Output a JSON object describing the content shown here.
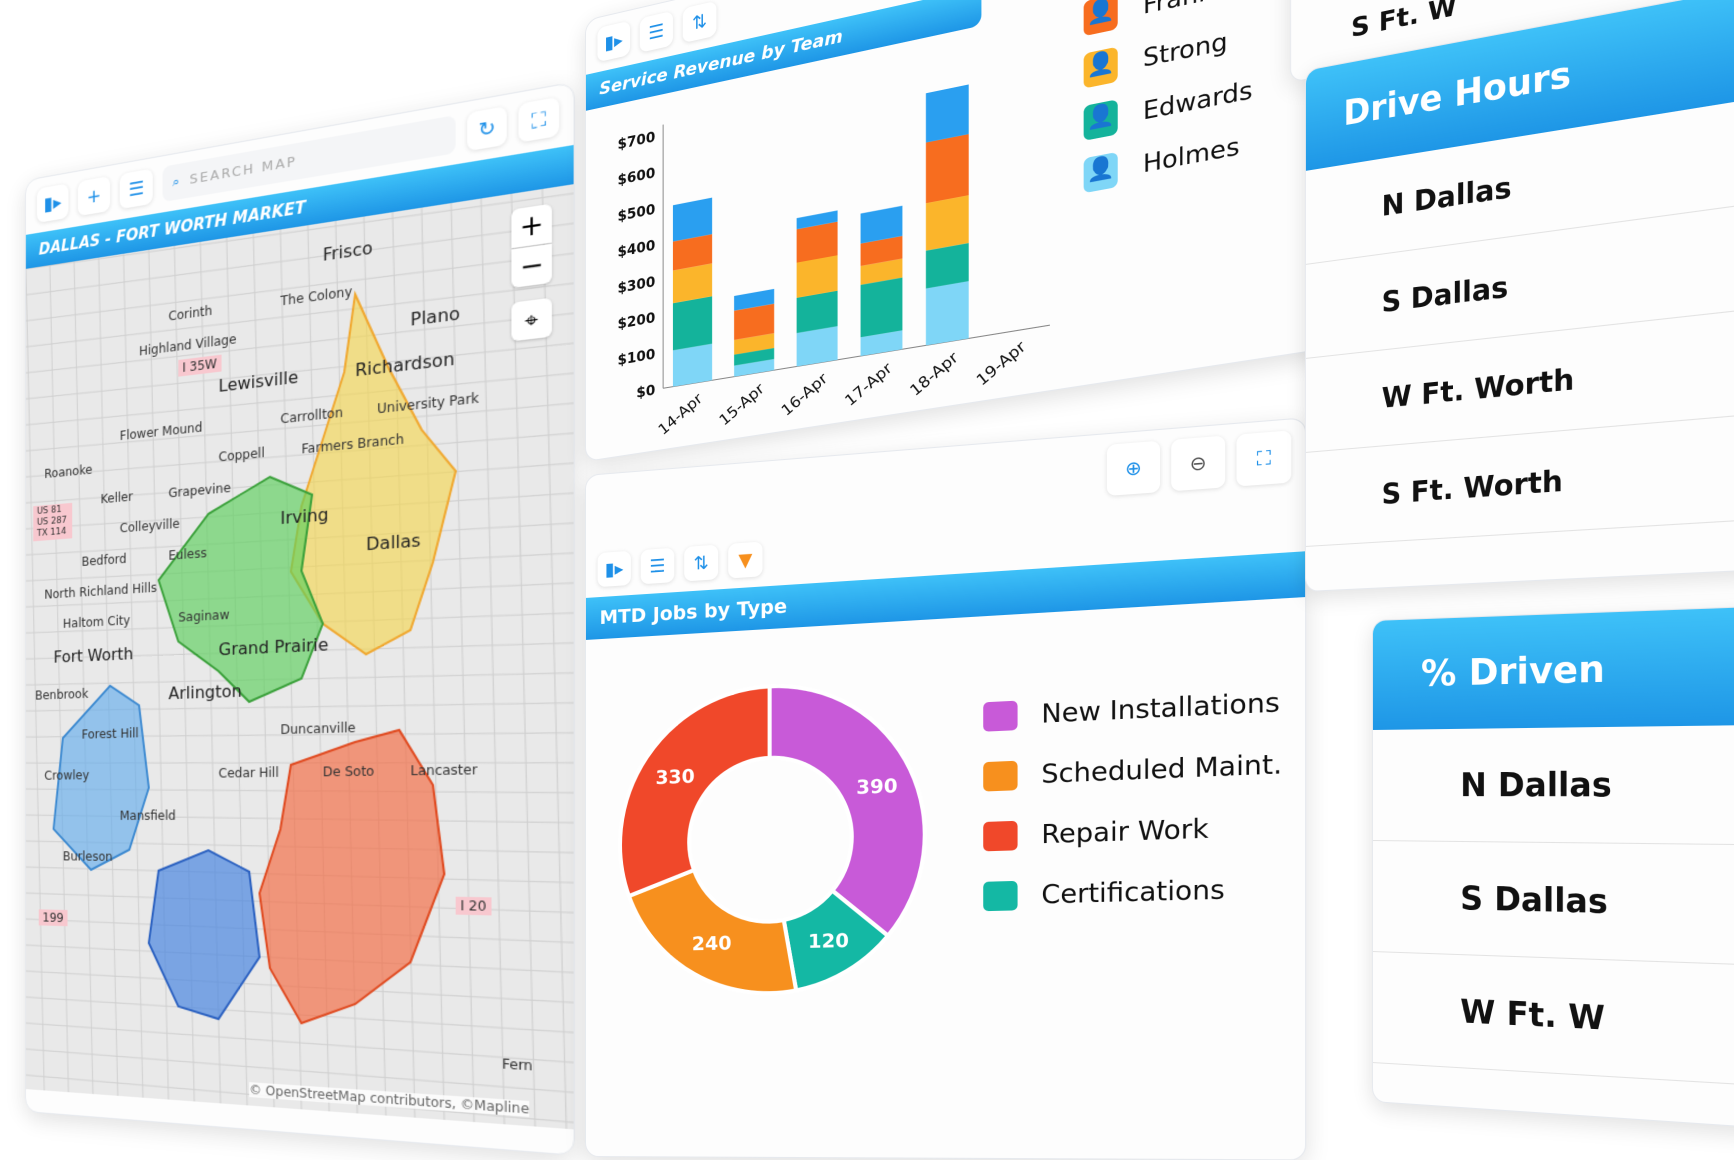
{
  "map_panel": {
    "title": "DALLAS - FORT WORTH MARKET",
    "search_placeholder": "SEARCH MAP",
    "zoom_in": "+",
    "zoom_out": "−",
    "attribution": "© OpenStreetMap contributors, ©Mapline",
    "places": [
      "Frisco",
      "Plano",
      "Richardson",
      "Carrollton",
      "Farmers Branch",
      "Lewisville",
      "The Colony",
      "Corinth",
      "Highland Village",
      "Flower Mound",
      "Coppell",
      "Grapevine",
      "Keller",
      "Roanoke",
      "Colleyville",
      "Bedford",
      "North Richland Hills",
      "Haltom City",
      "Saginaw",
      "Fort Worth",
      "Irving",
      "Dallas",
      "Grand Prairie",
      "Arlington",
      "Duncanville",
      "Cedar Hill",
      "De Soto",
      "Lancaster",
      "Mansfield",
      "Crowley",
      "Forest Hill",
      "Benbrook",
      "University Park",
      "Euless",
      "Burleson",
      "Fern"
    ],
    "road_shields": [
      "I 35W",
      "I 20",
      "US 81 US 287 TX 114",
      "199"
    ],
    "territory_colors": {
      "north": "#f5d547",
      "northwest": "#5ccf5c",
      "west": "#5aa8ec",
      "southwest": "#3f7fe0",
      "south": "#f5693f"
    }
  },
  "revenue_panel": {
    "title": "Service Revenue by Team"
  },
  "jobs_panel": {
    "title": "MTD Jobs by Type"
  },
  "drive_hours": {
    "title": "Drive Hours",
    "rows": [
      "N Dallas",
      "S Dallas",
      "W Ft. Worth",
      "S Ft. Worth"
    ]
  },
  "pct_driven": {
    "title": "% Driven",
    "rows": [
      "N Dallas",
      "S Dallas",
      "W Ft. W"
    ]
  },
  "top_right_partial": {
    "row": "S Ft. W"
  },
  "chart_data": [
    {
      "type": "bar",
      "stacked": true,
      "title": "Service Revenue by Team",
      "categories": [
        "14-Apr",
        "15-Apr",
        "16-Apr",
        "17-Apr",
        "18-Apr",
        "19-Apr"
      ],
      "yticks": [
        "$0",
        "$100",
        "$200",
        "$300",
        "$400",
        "$500",
        "$600",
        "$700"
      ],
      "ylim": [
        0,
        700
      ],
      "legend_position": "right",
      "series": [
        {
          "name": "Holmes",
          "color": "#7fd6f7",
          "values": [
            100,
            30,
            90,
            50,
            150,
            0
          ]
        },
        {
          "name": "Edwards",
          "color": "#14b39b",
          "values": [
            130,
            30,
            95,
            140,
            100,
            0
          ]
        },
        {
          "name": "Strong",
          "color": "#fbb52b",
          "values": [
            90,
            40,
            95,
            50,
            125,
            0
          ]
        },
        {
          "name": "Franklin",
          "color": "#f76d1f",
          "values": [
            80,
            80,
            90,
            60,
            160,
            0
          ]
        },
        {
          "name": "",
          "color": "#2a9ff0",
          "values": [
            100,
            40,
            30,
            80,
            130,
            0
          ]
        }
      ]
    },
    {
      "type": "pie",
      "donut": true,
      "title": "MTD Jobs by Type",
      "legend_position": "right",
      "slices": [
        {
          "label": "New Installations",
          "value": 390,
          "color": "#c85ad8"
        },
        {
          "label": "Certifications",
          "value": 120,
          "color": "#14b8a4"
        },
        {
          "label": "Scheduled Maint.",
          "value": 240,
          "color": "#f7901e"
        },
        {
          "label": "Repair Work",
          "value": 330,
          "color": "#f0482a"
        }
      ]
    }
  ]
}
